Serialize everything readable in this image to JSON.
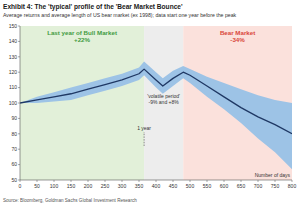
{
  "chart_data": {
    "type": "line",
    "title": "Exhibit 4: The 'typical' profile of the 'Bear Market Bounce'",
    "subtitle": "Average returns and average length of US bear market (ex 1998); data start one year before the peak",
    "source": "Source: Bloomberg, Goldman Sachs Global Investment Research",
    "x_label": "Number of days",
    "x": [
      0,
      50,
      100,
      150,
      200,
      250,
      300,
      350,
      365,
      400,
      420,
      450,
      480,
      500,
      550,
      600,
      650,
      700,
      750,
      800
    ],
    "series": [
      {
        "color": "#1f3864",
        "values": [
          100,
          102,
          104,
          106,
          109,
          112,
          115,
          119,
          122,
          115,
          111,
          116,
          120,
          118,
          111,
          104,
          97,
          91,
          86,
          80
        ]
      }
    ],
    "band": {
      "color": "#9dc3e6",
      "lower": [
        100,
        100,
        101,
        102,
        105,
        108,
        111,
        115,
        118,
        110,
        106,
        111,
        116,
        113,
        104,
        96,
        87,
        77,
        68,
        57
      ],
      "upper": [
        100,
        104,
        107,
        110,
        113,
        116,
        119,
        123,
        127,
        120,
        116,
        121,
        124,
        122,
        117,
        113,
        109,
        105,
        102,
        100
      ]
    },
    "regions": [
      {
        "start": 0,
        "end": 365,
        "color": "#e2f0d9",
        "text_color": "#3f9b3f",
        "label": "Last year of Bull Market",
        "sublabel": "+22%"
      },
      {
        "start": 365,
        "end": 480,
        "color": "#ededed",
        "text_color": "#333333",
        "label": "'volatile period'",
        "sublabel": "-9% and +8%"
      },
      {
        "start": 480,
        "end": 800,
        "color": "#fbe1dc",
        "text_color": "#d9463b",
        "label": "Bear Market",
        "sublabel": "-34%"
      }
    ],
    "vlines": [
      {
        "x": 365,
        "label": "1 year"
      }
    ],
    "xlim": [
      0,
      800
    ],
    "xticks": [
      0,
      50,
      100,
      150,
      200,
      250,
      300,
      350,
      400,
      450,
      500,
      550,
      600,
      650,
      700,
      750,
      800
    ],
    "ylim": [
      50,
      150
    ],
    "yticks": [
      50,
      60,
      70,
      80,
      90,
      100,
      110,
      120,
      130,
      140,
      150
    ],
    "grid": false
  }
}
